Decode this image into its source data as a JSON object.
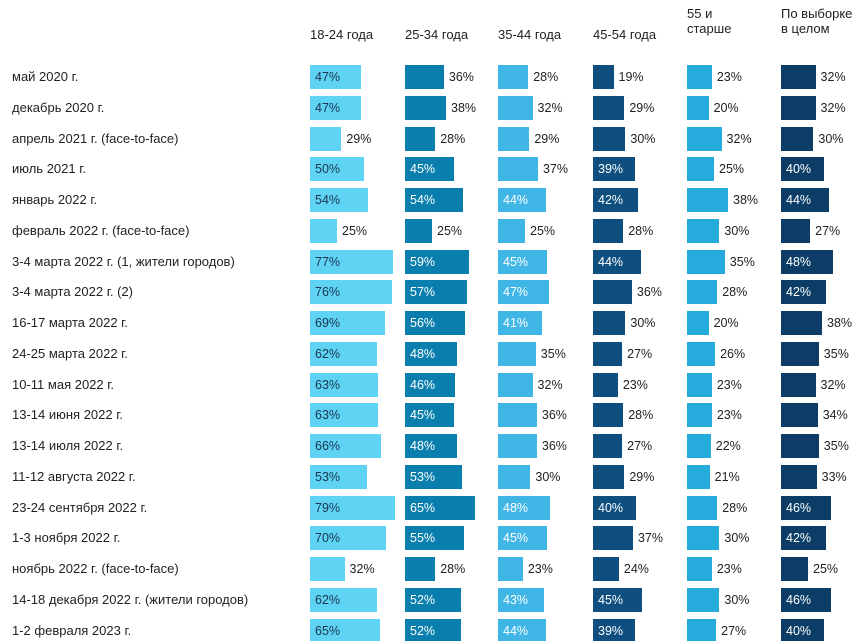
{
  "chart_data": {
    "type": "bar",
    "categories": [
      "май 2020 г.",
      "декабрь 2020 г.",
      "апрель 2021 г. (face-to-face)",
      "июль 2021 г.",
      "январь 2022 г.",
      "февраль 2022 г. (face-to-face)",
      "3-4 марта 2022 г. (1, жители городов)",
      "3-4 марта 2022 г. (2)",
      "16-17 марта 2022 г.",
      "24-25 марта 2022 г.",
      "10-11 мая 2022 г.",
      "13-14 июня 2022 г.",
      "13-14 июля 2022 г.",
      "11-12 августа 2022 г.",
      "23-24 сентября 2022 г.",
      "1-3 ноября 2022 г.",
      "ноябрь 2022 г. (face-to-face)",
      "14-18 декабря 2022 г. (жители городов)",
      "1-2 февраля 2023 г."
    ],
    "series": [
      {
        "name": "18-24 года",
        "color": "#5fd3f3",
        "values": [
          47,
          47,
          29,
          50,
          54,
          25,
          77,
          76,
          69,
          62,
          63,
          63,
          66,
          53,
          79,
          70,
          32,
          62,
          65
        ],
        "value_labels": [
          "47%",
          "47%",
          "29%",
          "50%",
          "54%",
          "25%",
          "77%",
          "76%",
          "69%",
          "62%",
          "63%",
          "63%",
          "66%",
          "53%",
          "79%",
          "70%",
          "32%",
          "62%",
          "65%"
        ]
      },
      {
        "name": "25-34 года",
        "color": "#0a7fae",
        "values": [
          36,
          38,
          28,
          45,
          54,
          25,
          59,
          57,
          56,
          48,
          46,
          45,
          48,
          53,
          65,
          55,
          28,
          52,
          52
        ],
        "value_labels": [
          "36%",
          "38%",
          "28%",
          "45%",
          "54%",
          "25%",
          "59%",
          "57%",
          "56%",
          "48%",
          "46%",
          "45%",
          "48%",
          "53%",
          "65%",
          "55%",
          "28%",
          "52%",
          "52%"
        ]
      },
      {
        "name": "35-44 года",
        "color": "#3fb6e6",
        "values": [
          28,
          32,
          29,
          37,
          44,
          25,
          45,
          47,
          41,
          35,
          32,
          36,
          36,
          30,
          48,
          45,
          23,
          43,
          44
        ],
        "value_labels": [
          "28%",
          "32%",
          "29%",
          "37%",
          "44%",
          "25%",
          "45%",
          "47%",
          "41%",
          "35%",
          "32%",
          "36%",
          "36%",
          "30%",
          "48%",
          "45%",
          "23%",
          "43%",
          "44%"
        ]
      },
      {
        "name": "45-54 года",
        "color": "#0e4f80",
        "values": [
          19,
          29,
          30,
          39,
          42,
          28,
          44,
          36,
          30,
          27,
          23,
          28,
          27,
          29,
          40,
          37,
          24,
          45,
          39
        ],
        "value_labels": [
          "19%",
          "29%",
          "30%",
          "39%",
          "42%",
          "28%",
          "44%",
          "36%",
          "30%",
          "27%",
          "23%",
          "28%",
          "27%",
          "29%",
          "40%",
          "37%",
          "24%",
          "45%",
          "39%"
        ]
      },
      {
        "name": "55 и старше",
        "color": "#26abdd",
        "values": [
          23,
          20,
          32,
          25,
          38,
          30,
          35,
          28,
          20,
          26,
          23,
          23,
          22,
          21,
          28,
          30,
          23,
          30,
          27
        ],
        "value_labels": [
          "23%",
          "20%",
          "32%",
          "25%",
          "38%",
          "30%",
          "35%",
          "28%",
          "20%",
          "26%",
          "23%",
          "23%",
          "22%",
          "21%",
          "28%",
          "30%",
          "23%",
          "30%",
          "27%"
        ]
      },
      {
        "name": "По выборке в целом",
        "color": "#0b3d66",
        "values": [
          32,
          32,
          30,
          40,
          44,
          27,
          48,
          42,
          38,
          35,
          32,
          34,
          35,
          33,
          46,
          42,
          25,
          46,
          40
        ],
        "value_labels": [
          "32%",
          "32%",
          "30%",
          "40%",
          "44%",
          "27%",
          "48%",
          "42%",
          "38%",
          "35%",
          "32%",
          "34%",
          "35%",
          "33%",
          "46%",
          "42%",
          "25%",
          "46%",
          "40%"
        ]
      }
    ]
  }
}
